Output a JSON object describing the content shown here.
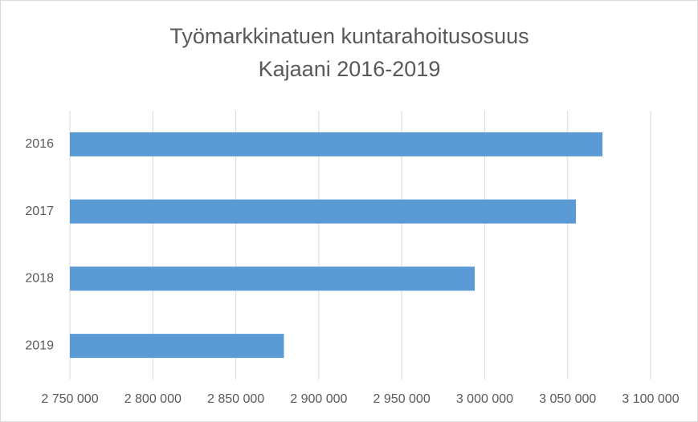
{
  "chart_data": {
    "type": "barh",
    "title": [
      "Työmarkkinatuen kuntarahoitusosuus",
      "Kajaani  2016-2019"
    ],
    "categories": [
      "2016",
      "2017",
      "2018",
      "2019"
    ],
    "values": [
      3071000,
      3055000,
      2994000,
      2879000
    ],
    "color": "#5b9bd5",
    "xlim": [
      2750000,
      3100000
    ],
    "xticks": [
      {
        "value": 2750000,
        "label": "2 750 000"
      },
      {
        "value": 2800000,
        "label": "2 800 000"
      },
      {
        "value": 2850000,
        "label": "2 850 000"
      },
      {
        "value": 2900000,
        "label": "2 900 000"
      },
      {
        "value": 2950000,
        "label": "2 950 000"
      },
      {
        "value": 3000000,
        "label": "3 000 000"
      },
      {
        "value": 3050000,
        "label": "3 050 000"
      },
      {
        "value": 3100000,
        "label": "3 100 000"
      }
    ],
    "grid": true
  }
}
